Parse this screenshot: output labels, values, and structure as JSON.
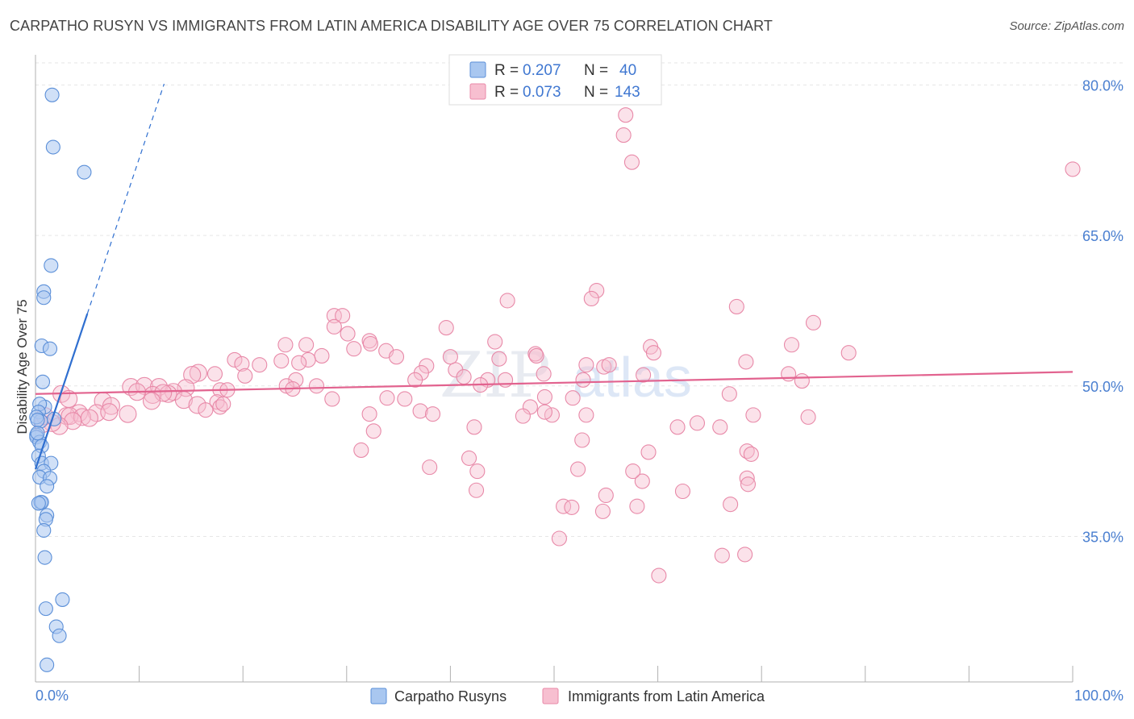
{
  "header": {
    "title": "CARPATHO RUSYN VS IMMIGRANTS FROM LATIN AMERICA DISABILITY AGE OVER 75 CORRELATION CHART",
    "source": "Source: ZipAtlas.com"
  },
  "watermark": {
    "zip": "ZIP",
    "atlas": "atlas"
  },
  "legend": {
    "rows": [
      {
        "r_label": "R =",
        "r_value": "0.207",
        "n_label": "N =",
        "n_value": "40"
      },
      {
        "r_label": "R =",
        "r_value": "0.073",
        "n_label": "N =",
        "n_value": "143"
      }
    ]
  },
  "bottom_legend": {
    "items": [
      {
        "label": "Carpatho Rusyns"
      },
      {
        "label": "Immigrants from Latin America"
      }
    ]
  },
  "chart_data": {
    "type": "scatter",
    "title": "CARPATHO RUSYN VS IMMIGRANTS FROM LATIN AMERICA DISABILITY AGE OVER 75 CORRELATION CHART",
    "xlabel": "",
    "ylabel": "Disability Age Over 75",
    "xlim": [
      0,
      100
    ],
    "ylim": [
      20.5,
      83
    ],
    "x_tick_labels": [
      "0.0%",
      "100.0%"
    ],
    "y_ticks": [
      35,
      50,
      65,
      80
    ],
    "y_tick_labels": [
      "35.0%",
      "50.0%",
      "65.0%",
      "80.0%"
    ],
    "grid": true,
    "colors": {
      "rusyn_fill": "#a9c7f0",
      "rusyn_stroke": "#5b8fd8",
      "rusyn_line": "#2f6fd0",
      "latam_fill": "#f7bfd0",
      "latam_stroke": "#e889a8",
      "latam_line": "#e2638f",
      "axis_text": "#4a7fd0"
    },
    "series": [
      {
        "name": "Carpatho Rusyns",
        "r": 0.207,
        "n": 40,
        "trend": {
          "x0": 0.0,
          "y0": 41.7,
          "x1": 5.0,
          "y1": 57.2,
          "dash_to_x": 12.4,
          "dash_to_y": 80.1
        },
        "points": [
          [
            1.6,
            79.0
          ],
          [
            1.7,
            73.8
          ],
          [
            4.7,
            71.3
          ],
          [
            1.5,
            62.0
          ],
          [
            0.8,
            59.4
          ],
          [
            0.8,
            58.8
          ],
          [
            0.6,
            54.0
          ],
          [
            1.4,
            53.7
          ],
          [
            0.7,
            50.4
          ],
          [
            0.9,
            47.9
          ],
          [
            0.4,
            48.2
          ],
          [
            0.3,
            47.4
          ],
          [
            0.5,
            46.5
          ],
          [
            1.8,
            46.7
          ],
          [
            0.1,
            45.1
          ],
          [
            0.1,
            44.9
          ],
          [
            0.4,
            44.4
          ],
          [
            0.6,
            44.0
          ],
          [
            0.3,
            43.0
          ],
          [
            0.6,
            42.3
          ],
          [
            1.5,
            42.3
          ],
          [
            0.8,
            41.5
          ],
          [
            0.4,
            40.9
          ],
          [
            1.4,
            40.8
          ],
          [
            1.1,
            40.0
          ],
          [
            0.5,
            38.4
          ],
          [
            0.6,
            38.4
          ],
          [
            0.3,
            38.3
          ],
          [
            1.1,
            37.1
          ],
          [
            1.0,
            36.7
          ],
          [
            0.8,
            35.6
          ],
          [
            0.9,
            32.9
          ],
          [
            2.6,
            28.7
          ],
          [
            1.0,
            27.8
          ],
          [
            2.0,
            26.0
          ],
          [
            2.3,
            25.1
          ],
          [
            1.1,
            22.2
          ],
          [
            0.1,
            46.9
          ],
          [
            0.2,
            46.6
          ],
          [
            0.2,
            45.3
          ]
        ]
      },
      {
        "name": "Immigrants from Latin America",
        "r": 0.073,
        "n": 143,
        "trend": {
          "x0": 0.0,
          "y0": 49.2,
          "x1": 100.0,
          "y1": 51.4
        },
        "points": [
          [
            56.9,
            77.0
          ],
          [
            56.7,
            75.0
          ],
          [
            57.5,
            72.3
          ],
          [
            100.0,
            71.6
          ],
          [
            45.5,
            58.5
          ],
          [
            54.1,
            59.5
          ],
          [
            53.6,
            58.7
          ],
          [
            67.6,
            57.9
          ],
          [
            28.8,
            57.0
          ],
          [
            29.6,
            57.0
          ],
          [
            39.6,
            55.8
          ],
          [
            75.0,
            56.3
          ],
          [
            30.1,
            55.2
          ],
          [
            28.8,
            55.9
          ],
          [
            32.2,
            54.5
          ],
          [
            32.3,
            54.2
          ],
          [
            24.1,
            54.1
          ],
          [
            26.1,
            54.1
          ],
          [
            44.3,
            54.4
          ],
          [
            59.3,
            53.9
          ],
          [
            72.9,
            54.1
          ],
          [
            30.7,
            53.7
          ],
          [
            33.8,
            53.5
          ],
          [
            59.6,
            53.3
          ],
          [
            78.4,
            53.3
          ],
          [
            34.8,
            52.9
          ],
          [
            27.6,
            53.0
          ],
          [
            26.3,
            52.6
          ],
          [
            48.2,
            53.2
          ],
          [
            48.3,
            53.0
          ],
          [
            19.2,
            52.6
          ],
          [
            40.0,
            52.9
          ],
          [
            44.7,
            52.7
          ],
          [
            23.7,
            52.5
          ],
          [
            25.4,
            52.3
          ],
          [
            19.9,
            52.2
          ],
          [
            21.6,
            52.1
          ],
          [
            37.7,
            52.0
          ],
          [
            53.1,
            52.1
          ],
          [
            54.8,
            51.9
          ],
          [
            55.3,
            52.1
          ],
          [
            68.5,
            52.4
          ],
          [
            40.5,
            51.6
          ],
          [
            37.2,
            51.3
          ],
          [
            15.7,
            51.3
          ],
          [
            15.1,
            51.1
          ],
          [
            17.3,
            51.2
          ],
          [
            49.0,
            51.2
          ],
          [
            20.2,
            51.0
          ],
          [
            72.6,
            51.2
          ],
          [
            58.6,
            51.1
          ],
          [
            25.1,
            50.6
          ],
          [
            41.3,
            50.9
          ],
          [
            43.6,
            50.6
          ],
          [
            36.6,
            50.6
          ],
          [
            45.3,
            50.6
          ],
          [
            52.8,
            50.6
          ],
          [
            73.9,
            50.5
          ],
          [
            27.1,
            50.0
          ],
          [
            24.2,
            50.0
          ],
          [
            24.8,
            49.7
          ],
          [
            9.2,
            49.9
          ],
          [
            10.5,
            50.0
          ],
          [
            11.9,
            49.9
          ],
          [
            14.5,
            49.8
          ],
          [
            17.8,
            49.6
          ],
          [
            18.5,
            49.6
          ],
          [
            13.3,
            49.4
          ],
          [
            12.8,
            49.2
          ],
          [
            11.3,
            49.1
          ],
          [
            9.8,
            49.4
          ],
          [
            12.3,
            49.3
          ],
          [
            42.9,
            50.1
          ],
          [
            49.1,
            48.9
          ],
          [
            66.9,
            49.2
          ],
          [
            2.5,
            49.2
          ],
          [
            3.2,
            48.7
          ],
          [
            28.6,
            48.7
          ],
          [
            33.9,
            48.8
          ],
          [
            51.8,
            48.8
          ],
          [
            14.3,
            48.6
          ],
          [
            35.6,
            48.7
          ],
          [
            11.2,
            48.5
          ],
          [
            6.5,
            48.5
          ],
          [
            7.3,
            48.0
          ],
          [
            15.6,
            48.1
          ],
          [
            17.5,
            48.4
          ],
          [
            47.7,
            47.9
          ],
          [
            37.1,
            47.5
          ],
          [
            32.2,
            47.2
          ],
          [
            49.8,
            47.1
          ],
          [
            49.1,
            47.4
          ],
          [
            47.0,
            47.0
          ],
          [
            53.1,
            47.1
          ],
          [
            69.2,
            47.1
          ],
          [
            74.5,
            46.9
          ],
          [
            4.2,
            47.3
          ],
          [
            5.9,
            47.3
          ],
          [
            7.1,
            47.4
          ],
          [
            3.0,
            47.0
          ],
          [
            3.3,
            47.0
          ],
          [
            4.5,
            46.9
          ],
          [
            5.2,
            46.8
          ],
          [
            3.6,
            46.5
          ],
          [
            2.3,
            46.0
          ],
          [
            1.6,
            46.3
          ],
          [
            0.7,
            46.2
          ],
          [
            0.9,
            47.0
          ],
          [
            8.9,
            47.2
          ],
          [
            16.4,
            47.6
          ],
          [
            17.8,
            47.9
          ],
          [
            18.1,
            48.2
          ],
          [
            38.3,
            47.2
          ],
          [
            63.8,
            46.3
          ],
          [
            66.0,
            45.9
          ],
          [
            61.9,
            45.9
          ],
          [
            32.6,
            45.5
          ],
          [
            42.3,
            45.9
          ],
          [
            52.7,
            44.6
          ],
          [
            68.6,
            43.5
          ],
          [
            59.1,
            43.4
          ],
          [
            69.0,
            43.2
          ],
          [
            41.8,
            42.8
          ],
          [
            31.4,
            43.6
          ],
          [
            52.3,
            41.7
          ],
          [
            58.5,
            40.5
          ],
          [
            42.6,
            41.5
          ],
          [
            57.6,
            41.5
          ],
          [
            38.0,
            41.9
          ],
          [
            68.6,
            40.8
          ],
          [
            68.7,
            40.2
          ],
          [
            42.5,
            39.6
          ],
          [
            55.0,
            39.1
          ],
          [
            50.9,
            38.0
          ],
          [
            62.4,
            39.5
          ],
          [
            58.0,
            38.0
          ],
          [
            51.7,
            37.9
          ],
          [
            54.7,
            37.5
          ],
          [
            67.0,
            38.2
          ],
          [
            50.5,
            34.8
          ],
          [
            66.2,
            33.1
          ],
          [
            68.4,
            33.2
          ],
          [
            60.1,
            31.1
          ]
        ]
      }
    ]
  }
}
